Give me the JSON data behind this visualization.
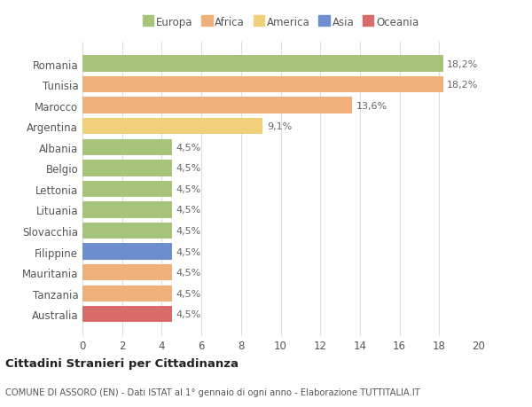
{
  "categories": [
    "Romania",
    "Tunisia",
    "Marocco",
    "Argentina",
    "Albania",
    "Belgio",
    "Lettonia",
    "Lituania",
    "Slovacchia",
    "Filippine",
    "Mauritania",
    "Tanzania",
    "Australia"
  ],
  "values": [
    18.2,
    18.2,
    13.6,
    9.1,
    4.5,
    4.5,
    4.5,
    4.5,
    4.5,
    4.5,
    4.5,
    4.5,
    4.5
  ],
  "labels": [
    "18,2%",
    "18,2%",
    "13,6%",
    "9,1%",
    "4,5%",
    "4,5%",
    "4,5%",
    "4,5%",
    "4,5%",
    "4,5%",
    "4,5%",
    "4,5%",
    "4,5%"
  ],
  "colors": [
    "#a8c47a",
    "#f0b07a",
    "#f0b07a",
    "#f0d07a",
    "#a8c47a",
    "#a8c47a",
    "#a8c47a",
    "#a8c47a",
    "#a8c47a",
    "#6e8fcf",
    "#f0b07a",
    "#f0b07a",
    "#d96b6b"
  ],
  "legend_labels": [
    "Europa",
    "Africa",
    "America",
    "Asia",
    "Oceania"
  ],
  "legend_colors": [
    "#a8c47a",
    "#f0b07a",
    "#f0d07a",
    "#6e8fcf",
    "#d96b6b"
  ],
  "xlim": [
    0,
    20
  ],
  "xticks": [
    0,
    2,
    4,
    6,
    8,
    10,
    12,
    14,
    16,
    18,
    20
  ],
  "title": "Cittadini Stranieri per Cittadinanza",
  "subtitle": "COMUNE DI ASSORO (EN) - Dati ISTAT al 1° gennaio di ogni anno - Elaborazione TUTTITALIA.IT",
  "background_color": "#ffffff",
  "grid_color": "#dddddd",
  "bar_height": 0.78
}
